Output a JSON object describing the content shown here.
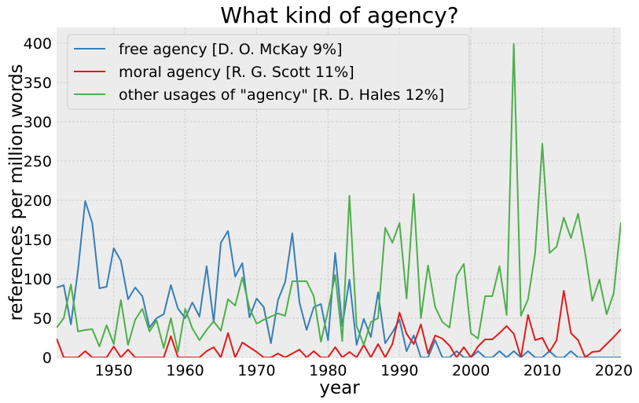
{
  "chart_data": {
    "type": "line",
    "title": "What kind of agency?",
    "xlabel": "year",
    "ylabel": "references per million words",
    "xlim": [
      1942,
      2021
    ],
    "ylim": [
      0,
      420
    ],
    "x_ticks": [
      1950,
      1960,
      1970,
      1980,
      1990,
      2000,
      2010,
      2020
    ],
    "y_ticks": [
      0,
      50,
      100,
      150,
      200,
      250,
      300,
      350,
      400
    ],
    "grid": true,
    "legend_position": "top-left",
    "x": [
      1942,
      1943,
      1944,
      1945,
      1946,
      1947,
      1948,
      1949,
      1950,
      1951,
      1952,
      1953,
      1954,
      1955,
      1956,
      1957,
      1958,
      1959,
      1960,
      1961,
      1962,
      1963,
      1964,
      1965,
      1966,
      1967,
      1968,
      1969,
      1970,
      1971,
      1972,
      1973,
      1974,
      1975,
      1976,
      1977,
      1978,
      1979,
      1980,
      1981,
      1982,
      1983,
      1984,
      1985,
      1986,
      1987,
      1988,
      1989,
      1990,
      1991,
      1992,
      1993,
      1994,
      1995,
      1996,
      1997,
      1998,
      1999,
      2000,
      2001,
      2002,
      2003,
      2004,
      2005,
      2006,
      2007,
      2008,
      2009,
      2010,
      2011,
      2012,
      2013,
      2014,
      2015,
      2016,
      2017,
      2018,
      2019,
      2020,
      2021
    ],
    "series": [
      {
        "name": "free agency [D. O. McKay 9%]",
        "color": "#377eb8",
        "values": [
          89,
          92,
          42,
          112,
          199,
          171,
          88,
          90,
          139,
          123,
          74,
          89,
          78,
          38,
          50,
          55,
          92,
          62,
          50,
          70,
          52,
          116,
          45,
          146,
          161,
          103,
          120,
          51,
          75,
          64,
          18,
          73,
          96,
          158,
          70,
          35,
          64,
          68,
          22,
          133,
          40,
          99,
          16,
          49,
          26,
          83,
          18,
          32,
          48,
          8,
          28,
          0,
          0,
          22,
          0,
          0,
          8,
          0,
          0,
          8,
          0,
          0,
          8,
          0,
          8,
          0,
          8,
          0,
          0,
          8,
          0,
          0,
          8,
          0,
          0,
          0,
          0,
          0,
          0,
          0
        ]
      },
      {
        "name": "moral agency [R. G. Scott 11%]",
        "color": "#e41a1c",
        "values": [
          24,
          0,
          0,
          0,
          8,
          0,
          0,
          0,
          14,
          0,
          10,
          0,
          0,
          0,
          0,
          0,
          27,
          0,
          0,
          0,
          0,
          8,
          13,
          0,
          31,
          0,
          19,
          13,
          7,
          0,
          0,
          5,
          0,
          5,
          10,
          0,
          8,
          0,
          0,
          13,
          0,
          7,
          0,
          16,
          0,
          17,
          0,
          17,
          57,
          30,
          17,
          42,
          5,
          28,
          24,
          15,
          0,
          13,
          0,
          14,
          23,
          23,
          31,
          40,
          30,
          0,
          54,
          22,
          25,
          7,
          22,
          85,
          31,
          22,
          0,
          7,
          8,
          17,
          26,
          36
        ]
      },
      {
        "name": "other usages of \"agency\" [R. D. Hales 12%]",
        "color": "#4daf4a",
        "values": [
          38,
          50,
          93,
          33,
          35,
          36,
          14,
          41,
          17,
          73,
          16,
          48,
          62,
          33,
          47,
          12,
          50,
          7,
          62,
          37,
          22,
          35,
          46,
          34,
          74,
          66,
          102,
          63,
          43,
          48,
          52,
          56,
          53,
          97,
          97,
          97,
          78,
          20,
          60,
          105,
          21,
          206,
          40,
          16,
          45,
          50,
          165,
          146,
          171,
          75,
          208,
          50,
          117,
          64,
          45,
          38,
          104,
          119,
          31,
          24,
          78,
          78,
          116,
          54,
          399,
          53,
          74,
          133,
          272,
          133,
          141,
          178,
          152,
          183,
          132,
          72,
          99,
          55,
          82,
          172
        ]
      }
    ]
  }
}
